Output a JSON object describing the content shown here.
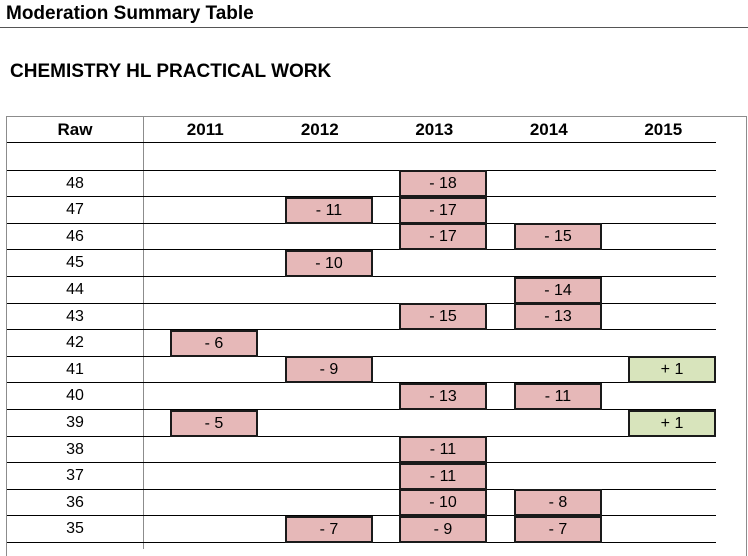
{
  "document": {
    "title": "Moderation Summary Table",
    "section": "CHEMISTRY HL PRACTICAL WORK"
  },
  "table": {
    "raw_header": "Raw",
    "years": [
      "2011",
      "2012",
      "2013",
      "2014",
      "2015"
    ],
    "raw_values": [
      "",
      "48",
      "47",
      "46",
      "45",
      "44",
      "43",
      "42",
      "41",
      "40",
      "39",
      "38",
      "37",
      "36",
      "35"
    ],
    "adjustments": [
      {
        "raw": "48",
        "year": "2013",
        "text": "- 18",
        "kind": "negative"
      },
      {
        "raw": "47",
        "year": "2012",
        "text": "- 11",
        "kind": "negative"
      },
      {
        "raw": "47",
        "year": "2013",
        "text": "- 17",
        "kind": "negative"
      },
      {
        "raw": "46",
        "year": "2013",
        "text": "- 17",
        "kind": "negative"
      },
      {
        "raw": "46",
        "year": "2014",
        "text": "- 15",
        "kind": "negative"
      },
      {
        "raw": "45",
        "year": "2012",
        "text": "- 10",
        "kind": "negative"
      },
      {
        "raw": "44",
        "year": "2014",
        "text": "- 14",
        "kind": "negative"
      },
      {
        "raw": "43",
        "year": "2013",
        "text": "- 15",
        "kind": "negative"
      },
      {
        "raw": "43",
        "year": "2014",
        "text": "- 13",
        "kind": "negative"
      },
      {
        "raw": "42",
        "year": "2011",
        "text": "- 6",
        "kind": "negative"
      },
      {
        "raw": "41",
        "year": "2012",
        "text": "- 9",
        "kind": "negative"
      },
      {
        "raw": "41",
        "year": "2015",
        "text": "+ 1",
        "kind": "positive"
      },
      {
        "raw": "40",
        "year": "2013",
        "text": "- 13",
        "kind": "negative"
      },
      {
        "raw": "40",
        "year": "2014",
        "text": "- 11",
        "kind": "negative"
      },
      {
        "raw": "39",
        "year": "2011",
        "text": "- 5",
        "kind": "negative"
      },
      {
        "raw": "39",
        "year": "2015",
        "text": "+ 1",
        "kind": "positive"
      },
      {
        "raw": "38",
        "year": "2013",
        "text": "- 11",
        "kind": "negative"
      },
      {
        "raw": "37",
        "year": "2013",
        "text": "- 11",
        "kind": "negative"
      },
      {
        "raw": "36",
        "year": "2013",
        "text": "- 10",
        "kind": "negative"
      },
      {
        "raw": "36",
        "year": "2014",
        "text": "- 8",
        "kind": "negative"
      },
      {
        "raw": "35",
        "year": "2012",
        "text": "- 7",
        "kind": "negative"
      },
      {
        "raw": "35",
        "year": "2013",
        "text": "- 9",
        "kind": "negative"
      },
      {
        "raw": "35",
        "year": "2014",
        "text": "- 7",
        "kind": "negative"
      }
    ]
  },
  "colors": {
    "negative_fill": "#e6b8b8",
    "positive_fill": "#d8e4bc",
    "border": "#1a1a1a"
  }
}
